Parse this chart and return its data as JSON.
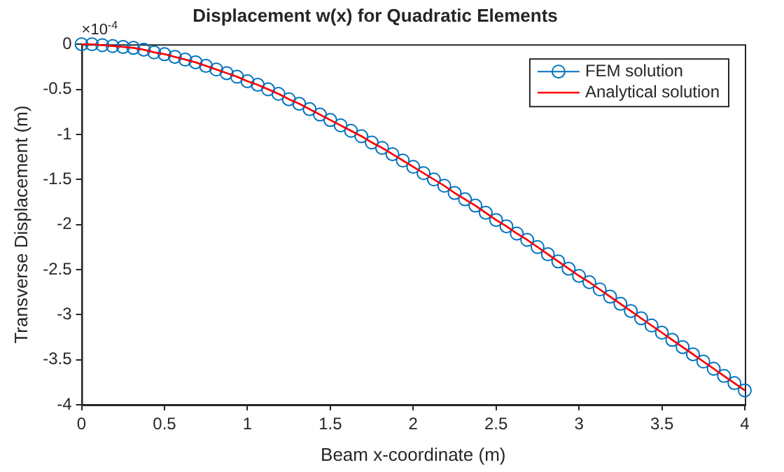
{
  "chart_data": {
    "type": "line",
    "title": "Displacement w(x) for Quadratic Elements",
    "xlabel": "Beam x-coordinate (m)",
    "ylabel": "Transverse Displacement (m)",
    "annotations": [
      "×10$^{-4}$"
    ],
    "x": [
      0,
      0.0625,
      0.125,
      0.1875,
      0.25,
      0.3125,
      0.375,
      0.4375,
      0.5,
      0.5625,
      0.625,
      0.6875,
      0.75,
      0.8125,
      0.875,
      0.9375,
      1,
      1.0625,
      1.125,
      1.1875,
      1.25,
      1.3125,
      1.375,
      1.4375,
      1.5,
      1.5625,
      1.625,
      1.6875,
      1.75,
      1.8125,
      1.875,
      1.9375,
      2,
      2.0625,
      2.125,
      2.1875,
      2.25,
      2.3125,
      2.375,
      2.4375,
      2.5,
      2.5625,
      2.625,
      2.6875,
      2.75,
      2.8125,
      2.875,
      2.9375,
      3,
      3.0625,
      3.125,
      3.1875,
      3.25,
      3.3125,
      3.375,
      3.4375,
      3.5,
      3.5625,
      3.625,
      3.6875,
      3.75,
      3.8125,
      3.875,
      3.9375,
      4
    ],
    "series": [
      {
        "name": "FEM solution",
        "color": "#0072bd",
        "marker": "circle",
        "values": [
          0,
          0,
          -0.01,
          -0.02,
          -0.03,
          -0.04,
          -0.06,
          -0.09,
          -0.11,
          -0.14,
          -0.17,
          -0.2,
          -0.24,
          -0.28,
          -0.32,
          -0.36,
          -0.41,
          -0.45,
          -0.5,
          -0.55,
          -0.61,
          -0.66,
          -0.72,
          -0.78,
          -0.84,
          -0.9,
          -0.96,
          -1.02,
          -1.09,
          -1.15,
          -1.22,
          -1.29,
          -1.36,
          -1.43,
          -1.5,
          -1.57,
          -1.65,
          -1.72,
          -1.79,
          -1.87,
          -1.95,
          -2.02,
          -2.1,
          -2.17,
          -2.25,
          -2.33,
          -2.41,
          -2.49,
          -2.57,
          -2.64,
          -2.72,
          -2.8,
          -2.88,
          -2.96,
          -3.04,
          -3.12,
          -3.2,
          -3.28,
          -3.36,
          -3.44,
          -3.52,
          -3.6,
          -3.68,
          -3.76,
          -3.84
        ]
      },
      {
        "name": "Analytical solution",
        "color": "#ff0000",
        "marker": "none",
        "values": [
          0,
          0,
          -0.01,
          -0.02,
          -0.03,
          -0.04,
          -0.06,
          -0.09,
          -0.11,
          -0.14,
          -0.17,
          -0.2,
          -0.24,
          -0.28,
          -0.32,
          -0.36,
          -0.41,
          -0.45,
          -0.5,
          -0.55,
          -0.61,
          -0.66,
          -0.72,
          -0.78,
          -0.84,
          -0.9,
          -0.96,
          -1.02,
          -1.09,
          -1.15,
          -1.22,
          -1.29,
          -1.36,
          -1.43,
          -1.5,
          -1.57,
          -1.65,
          -1.72,
          -1.79,
          -1.87,
          -1.95,
          -2.02,
          -2.1,
          -2.17,
          -2.25,
          -2.33,
          -2.41,
          -2.49,
          -2.57,
          -2.64,
          -2.72,
          -2.8,
          -2.88,
          -2.96,
          -3.04,
          -3.12,
          -3.2,
          -3.28,
          -3.36,
          -3.44,
          -3.52,
          -3.6,
          -3.68,
          -3.76,
          -3.84
        ]
      }
    ],
    "xlim": [
      0,
      4
    ],
    "xticks": [
      0,
      0.5,
      1,
      1.5,
      2,
      2.5,
      3,
      3.5,
      4
    ],
    "ylim": [
      -4,
      0
    ],
    "yticks": [
      -4,
      -3.5,
      -3,
      -2.5,
      -2,
      -1.5,
      -1,
      -0.5,
      0
    ],
    "grid": false,
    "legend": "top right",
    "line_style": "solid"
  }
}
